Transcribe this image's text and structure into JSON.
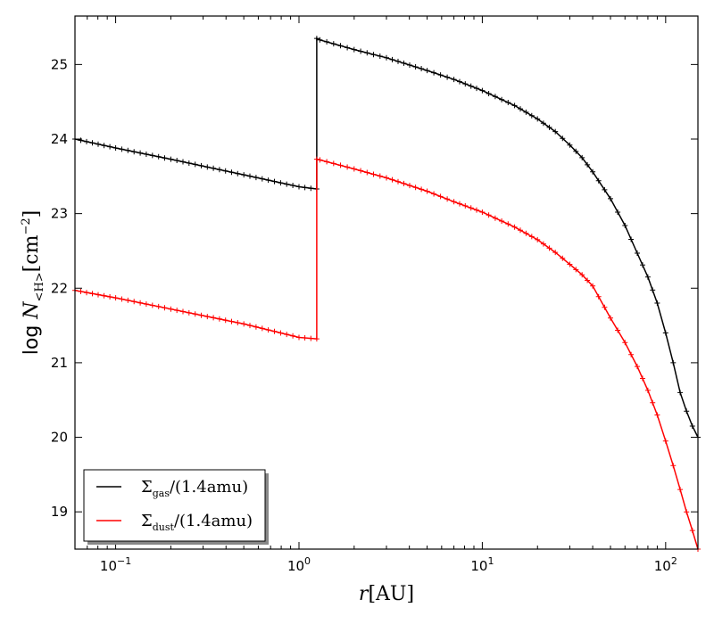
{
  "chart_data": {
    "type": "line",
    "xscale": "log",
    "xlim": [
      0.06,
      150
    ],
    "ylim": [
      18.5,
      25.65
    ],
    "xlabel": "r[AU]",
    "ylabel": "log N<H>[cm^-2]",
    "xticks": [
      {
        "value": 0.1,
        "base": "10",
        "exp": "−1"
      },
      {
        "value": 1,
        "base": "10",
        "exp": "0"
      },
      {
        "value": 10,
        "base": "10",
        "exp": "1"
      },
      {
        "value": 100,
        "base": "10",
        "exp": "2"
      }
    ],
    "yticks": [
      19,
      20,
      21,
      22,
      23,
      24,
      25
    ],
    "grid": false,
    "legend_position": "lower-left",
    "series": [
      {
        "name": "Σgas/(1.4amu)",
        "color": "#000000",
        "x": [
          0.06,
          0.1,
          0.2,
          0.5,
          1.0,
          1.25,
          1.25,
          1.3,
          2,
          3,
          5,
          7,
          10,
          15,
          20,
          25,
          30,
          35,
          40,
          50,
          60,
          70,
          80,
          90,
          100,
          110,
          120,
          130,
          140,
          150
        ],
        "y": [
          24.0,
          23.88,
          23.73,
          23.52,
          23.36,
          23.33,
          25.35,
          25.33,
          25.2,
          25.09,
          24.92,
          24.8,
          24.65,
          24.45,
          24.27,
          24.1,
          23.92,
          23.75,
          23.56,
          23.2,
          22.84,
          22.47,
          22.15,
          21.8,
          21.4,
          21.0,
          20.6,
          20.35,
          20.15,
          20.0
        ]
      },
      {
        "name": "Σdust/(1.4amu)",
        "color": "#ff0000",
        "x": [
          0.06,
          0.1,
          0.2,
          0.5,
          1.0,
          1.25,
          1.25,
          1.3,
          2,
          3,
          5,
          7,
          10,
          15,
          20,
          25,
          30,
          35,
          40,
          50,
          60,
          70,
          80,
          90,
          100,
          110,
          120,
          130,
          140,
          150
        ],
        "y": [
          21.97,
          21.87,
          21.72,
          21.52,
          21.34,
          21.32,
          23.73,
          23.72,
          23.6,
          23.48,
          23.3,
          23.16,
          23.02,
          22.82,
          22.65,
          22.48,
          22.32,
          22.18,
          22.03,
          21.6,
          21.27,
          20.95,
          20.63,
          20.3,
          19.95,
          19.62,
          19.3,
          19.0,
          18.75,
          18.5
        ]
      }
    ]
  }
}
